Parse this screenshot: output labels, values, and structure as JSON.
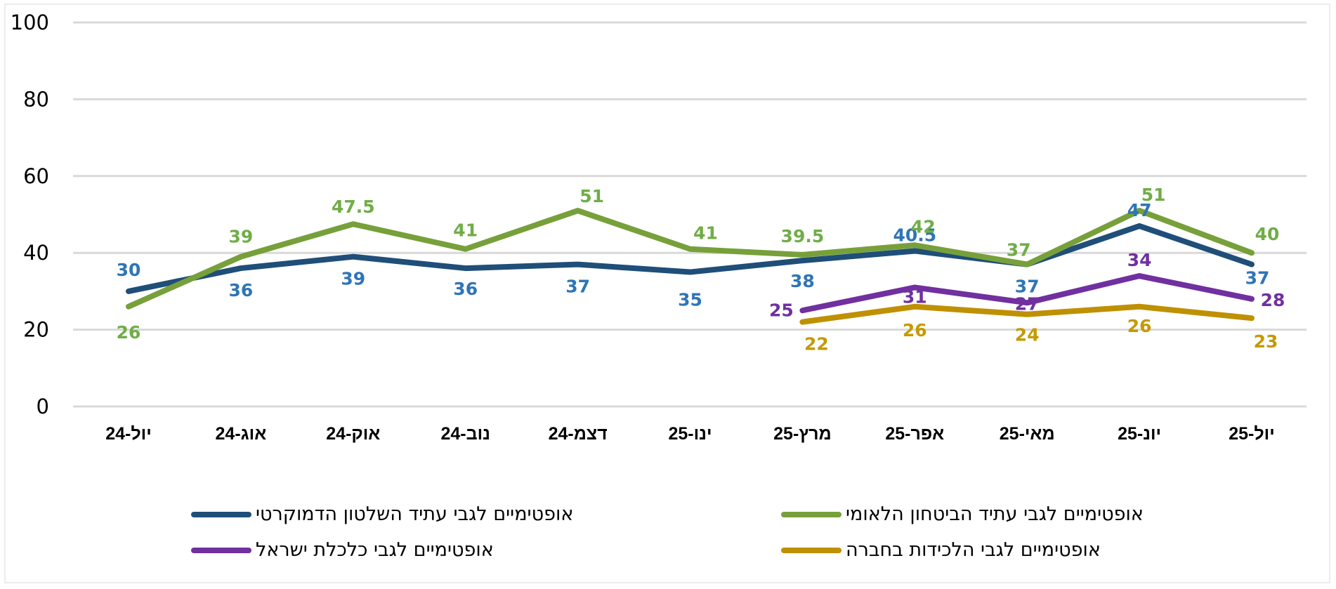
{
  "chart_data": {
    "type": "line",
    "title": "",
    "xlabel": "",
    "ylabel": "",
    "ylim": [
      0,
      100
    ],
    "yticks": [
      0,
      20,
      40,
      60,
      80,
      100
    ],
    "grid": true,
    "legend_position": "bottom",
    "categories": [
      "יול-24",
      "אוג-24",
      "אוק-24",
      "נוב-24",
      "דצמ-24",
      "ינו-25",
      "מרץ-25",
      "אפר-25",
      "מאי-25",
      "יונ-25",
      "יול-25"
    ],
    "series": [
      {
        "name": "אופטימיים לגבי עתיד השלטון הדמוקרטי",
        "line_color": "#1F4E79",
        "label_color": "#2E75B6",
        "values": [
          30,
          36,
          39,
          36,
          37,
          35,
          38,
          40.5,
          37,
          47,
          37
        ]
      },
      {
        "name": "אופטימיים לגבי עתיד הביטחון הלאומי",
        "line_color": "#77A03A",
        "label_color": "#70AD47",
        "values": [
          26,
          39,
          47.5,
          41,
          51,
          41,
          39.5,
          42,
          37,
          51,
          40
        ]
      },
      {
        "name": "אופטימיים לגבי כלכלת ישראל",
        "line_color": "#7030A0",
        "label_color": "#7030A0",
        "values": [
          null,
          null,
          null,
          null,
          null,
          null,
          25,
          31,
          27,
          34,
          28
        ]
      },
      {
        "name": "אופטימיים לגבי הלכידות בחברה",
        "line_color": "#BF9000",
        "label_color": "#C49A00",
        "values": [
          null,
          null,
          null,
          null,
          null,
          null,
          22,
          26,
          24,
          26,
          23
        ]
      }
    ]
  },
  "legend": [
    {
      "label": "אופטימיים לגבי עתיד השלטון הדמוקרטי",
      "color": "#1F4E79"
    },
    {
      "label": "אופטימיים לגבי עתיד הביטחון הלאומי",
      "color": "#77A03A"
    },
    {
      "label": "אופטימיים לגבי כלכלת ישראל",
      "color": "#7030A0"
    },
    {
      "label": "אופטימיים לגבי הלכידות בחברה",
      "color": "#BF9000"
    }
  ]
}
